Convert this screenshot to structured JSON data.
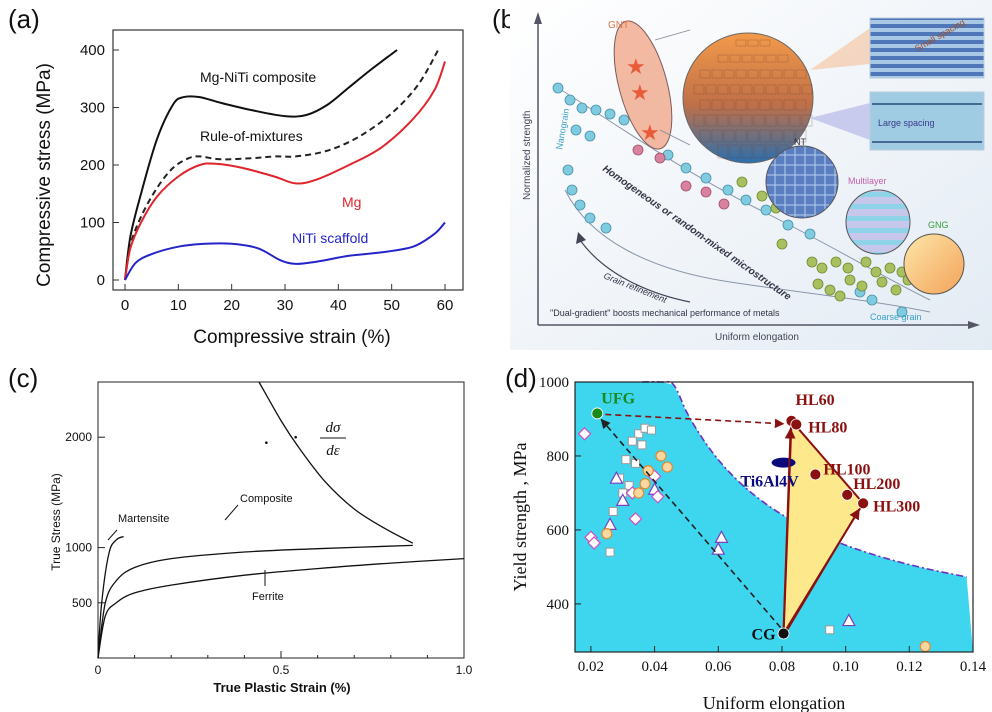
{
  "panel_labels": {
    "a": "(a)",
    "b": "(b)",
    "c": "(c)",
    "d": "(d)"
  },
  "chart_data": [
    {
      "panel": "a",
      "type": "line",
      "xlabel": "Compressive strain (%)",
      "ylabel": "Compressive stress (MPa)",
      "xlim": [
        0,
        60
      ],
      "ylim": [
        0,
        400
      ],
      "x_ticks": [
        0,
        10,
        20,
        30,
        40,
        50,
        60
      ],
      "y_ticks": [
        0,
        100,
        200,
        300,
        400
      ],
      "grid": false,
      "legend": "inline labels",
      "series": [
        {
          "name": "Mg-NiTi composite",
          "color": "#111111",
          "style": "solid",
          "x": [
            0,
            1,
            3,
            6,
            9,
            11,
            14,
            18,
            24,
            30,
            34,
            38,
            42,
            46,
            51
          ],
          "y": [
            0,
            75,
            150,
            245,
            305,
            318,
            318,
            308,
            295,
            285,
            287,
            305,
            335,
            365,
            400
          ]
        },
        {
          "name": "Rule-of-mixtures",
          "color": "#222222",
          "style": "dashed",
          "x": [
            0,
            1,
            3,
            6,
            9,
            12,
            14,
            18,
            24,
            28,
            32,
            38,
            44,
            50,
            55,
            59
          ],
          "y": [
            0,
            60,
            110,
            160,
            195,
            212,
            215,
            210,
            212,
            215,
            215,
            225,
            250,
            290,
            340,
            405
          ]
        },
        {
          "name": "Mg",
          "color": "#e0242c",
          "style": "solid",
          "x": [
            0,
            1,
            3,
            6,
            10,
            14,
            17,
            22,
            28,
            32,
            36,
            42,
            48,
            54,
            58,
            60
          ],
          "y": [
            0,
            55,
            100,
            145,
            180,
            200,
            202,
            195,
            180,
            168,
            175,
            200,
            230,
            280,
            330,
            380
          ]
        },
        {
          "name": "NiTi scaffold",
          "color": "#2424c8",
          "style": "solid",
          "x": [
            0,
            2,
            5,
            10,
            15,
            20,
            25,
            29,
            32,
            36,
            42,
            48,
            54,
            58,
            60
          ],
          "y": [
            0,
            30,
            45,
            58,
            63,
            63,
            55,
            35,
            28,
            32,
            42,
            48,
            58,
            80,
            100
          ]
        }
      ],
      "annotations": [
        "Mg-NiTi composite",
        "Rule-of-mixtures",
        "Mg",
        "NiTi scaffold"
      ]
    },
    {
      "panel": "b",
      "type": "scatter",
      "xlabel": "Uniform elongation",
      "ylabel": "Normalized strength",
      "annotations": {
        "gnt": "GNT",
        "small_spacing": "Small spacing",
        "large_spacing": "Large spacing",
        "nt": "NT",
        "multilayer": "Multilayer",
        "gng": "GNG",
        "nanograin": "Nanograin",
        "homogeneous": "Homogeneous or random-mixed microstructure",
        "grain_refinement": "Grain refinement",
        "coarse_grain": "Coarse grain",
        "footer": "\"Dual-gradient\" boosts mechanical performance of metals"
      }
    },
    {
      "panel": "c",
      "type": "line",
      "xlabel": "True Plastic  Strain (%)",
      "ylabel": "True Stress (MPa)",
      "xlim": [
        0,
        1.0
      ],
      "ylim": [
        0,
        2500
      ],
      "x_ticks": [
        "0",
        "0.5",
        "1.0"
      ],
      "y_ticks": [
        "500",
        "1000",
        "2000"
      ],
      "annotations": {
        "martensite": "Martensite",
        "composite": "Composite",
        "ferrite": "Ferrite",
        "d_sigma": "dσ",
        "d_eps": "dε"
      },
      "series": [
        {
          "name": "Martensite",
          "x": [
            0,
            0.01,
            0.03,
            0.05,
            0.07
          ],
          "y": [
            0,
            500,
            950,
            1070,
            1100
          ]
        },
        {
          "name": "Composite",
          "x": [
            0,
            0.02,
            0.05,
            0.1,
            0.2,
            0.4,
            0.6,
            0.86
          ],
          "y": [
            0,
            500,
            700,
            820,
            900,
            960,
            990,
            1020
          ]
        },
        {
          "name": "Ferrite",
          "x": [
            0,
            0.02,
            0.05,
            0.1,
            0.2,
            0.4,
            0.6,
            0.8,
            1.0
          ],
          "y": [
            0,
            380,
            500,
            590,
            660,
            750,
            810,
            860,
            900
          ]
        },
        {
          "name": "dσ/dε",
          "x": [
            0.44,
            0.5,
            0.55,
            0.62,
            0.7,
            0.78,
            0.86
          ],
          "y": [
            2500,
            2150,
            1900,
            1600,
            1350,
            1180,
            1040
          ]
        }
      ]
    },
    {
      "panel": "d",
      "type": "scatter",
      "xlabel": "Uniform elongation",
      "ylabel": "Yield strength , MPa",
      "xlim": [
        0.015,
        0.14
      ],
      "ylim": [
        270,
        1000
      ],
      "x_ticks": [
        "0.02",
        "0.04",
        "0.06",
        "0.08",
        "0.10",
        "0.12",
        "0.14"
      ],
      "y_ticks": [
        "400",
        "600",
        "800",
        "1000"
      ],
      "labeled_points": [
        {
          "name": "UFG",
          "x": 0.022,
          "y": 915,
          "color": "#1a8a1a"
        },
        {
          "name": "CG",
          "x": 0.0805,
          "y": 320,
          "color": "#111111"
        },
        {
          "name": "HL60",
          "x": 0.083,
          "y": 895,
          "color": "#8b1010"
        },
        {
          "name": "HL80",
          "x": 0.0845,
          "y": 885,
          "color": "#8b1010"
        },
        {
          "name": "HL100",
          "x": 0.0905,
          "y": 750,
          "color": "#8b1010"
        },
        {
          "name": "HL200",
          "x": 0.1005,
          "y": 695,
          "color": "#8b1010"
        },
        {
          "name": "HL300",
          "x": 0.1055,
          "y": 672,
          "color": "#8b1010"
        },
        {
          "name": "Ti6Al4V",
          "x": 0.0805,
          "y": 782,
          "color": "#0a0a7a"
        }
      ],
      "squares": [
        [
          0.035,
          860
        ],
        [
          0.037,
          875
        ],
        [
          0.039,
          870
        ],
        [
          0.033,
          840
        ],
        [
          0.036,
          830
        ],
        [
          0.031,
          790
        ],
        [
          0.034,
          780
        ],
        [
          0.029,
          740
        ],
        [
          0.032,
          720
        ],
        [
          0.03,
          700
        ],
        [
          0.027,
          650
        ],
        [
          0.026,
          540
        ],
        [
          0.095,
          330
        ]
      ],
      "triangles": [
        [
          0.028,
          740
        ],
        [
          0.03,
          680
        ],
        [
          0.026,
          615
        ],
        [
          0.04,
          710
        ],
        [
          0.06,
          548
        ],
        [
          0.061,
          580
        ],
        [
          0.101,
          355
        ]
      ],
      "diamonds": [
        [
          0.02,
          580
        ],
        [
          0.021,
          565
        ],
        [
          0.034,
          630
        ],
        [
          0.033,
          700
        ],
        [
          0.041,
          690
        ],
        [
          0.04,
          745
        ],
        [
          0.018,
          860
        ]
      ],
      "circles": [
        [
          0.025,
          590
        ],
        [
          0.035,
          700
        ],
        [
          0.037,
          725
        ],
        [
          0.038,
          760
        ],
        [
          0.044,
          770
        ],
        [
          0.042,
          800
        ],
        [
          0.125,
          285
        ]
      ],
      "colors": {
        "fill": "#3dd6ee",
        "highlight": "#fde98b",
        "boundary": "#6c2fc2",
        "arrow": "#8b1010"
      }
    }
  ]
}
